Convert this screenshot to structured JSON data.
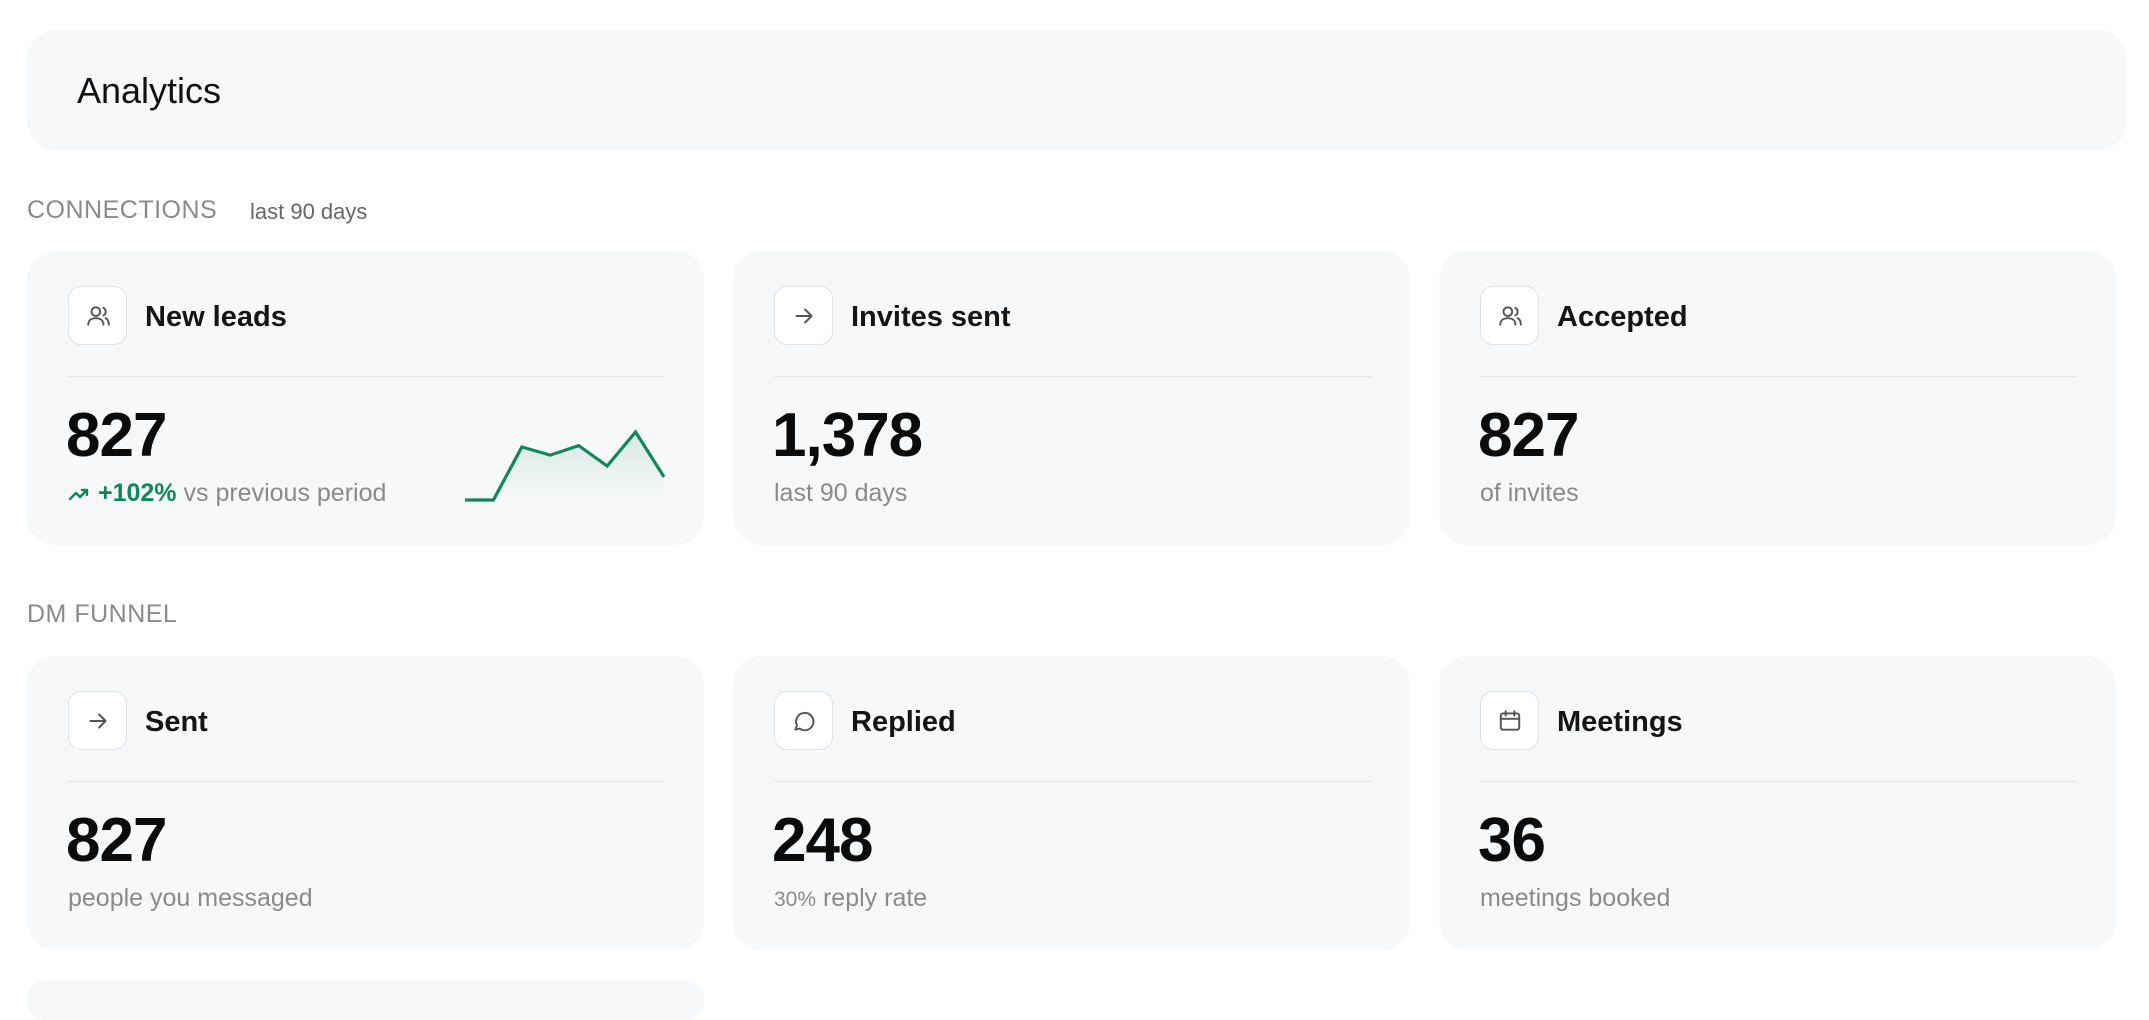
{
  "header": {
    "title": "Analytics"
  },
  "sections": [
    {
      "title": "CONNECTIONS",
      "subtitle": "last 90 days",
      "cards": [
        {
          "title": "New leads",
          "value": "827",
          "trend": "+102%",
          "note": "vs previous period",
          "sparkline": {
            "values": [
              0,
              0,
              39,
              33,
              40,
              25,
              50,
              17
            ],
            "ylim": [
              0,
              50
            ],
            "color": "#12875a"
          }
        },
        {
          "title": "Invites sent",
          "value": "1,378",
          "note": "last 90 days"
        },
        {
          "title": "Accepted",
          "value": "827",
          "note": "of invites"
        }
      ]
    },
    {
      "title": "DM FUNNEL",
      "cards": [
        {
          "title": "Sent",
          "value": "827",
          "note": "people you messaged"
        },
        {
          "title": "Replied",
          "value": "248",
          "rate": "30%",
          "note": "reply rate"
        },
        {
          "title": "Meetings",
          "value": "36",
          "note": "meetings booked"
        }
      ]
    }
  ]
}
